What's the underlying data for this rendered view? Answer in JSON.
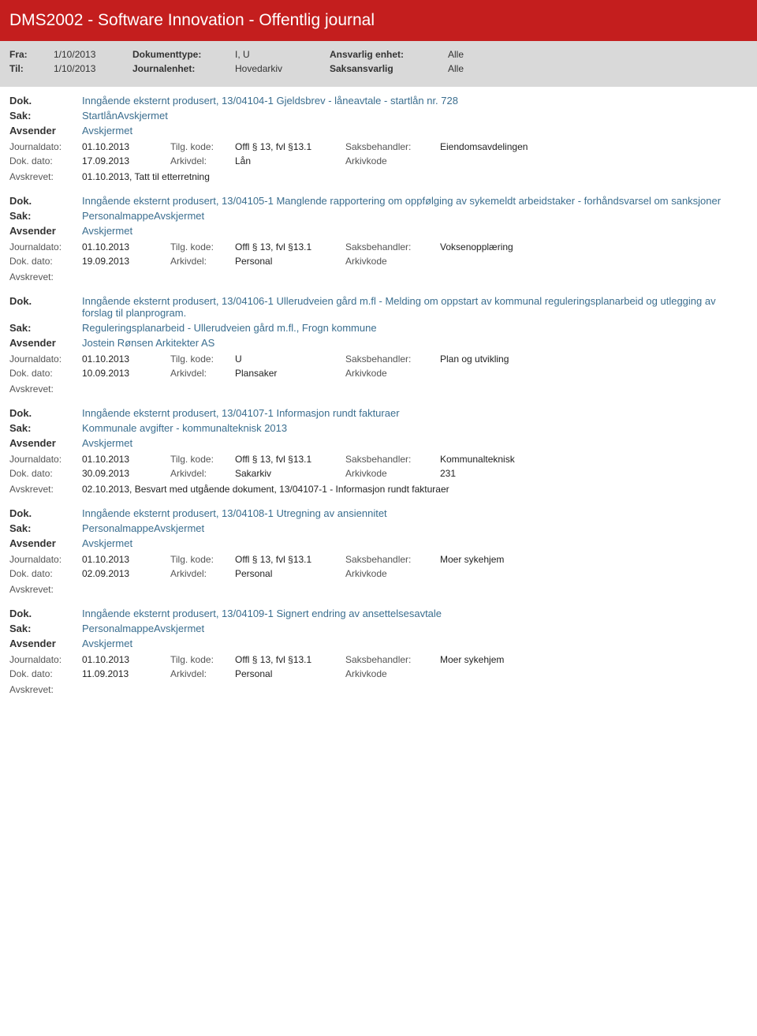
{
  "header": {
    "title": "DMS2002 - Software Innovation - Offentlig journal"
  },
  "filter": {
    "fra_label": "Fra:",
    "fra": "1/10/2013",
    "til_label": "Til:",
    "til": "1/10/2013",
    "doktype_label": "Dokumenttype:",
    "doktype": "I, U",
    "journalenhet_label": "Journalenhet:",
    "journalenhet": "Hovedarkiv",
    "ansvarlig_label": "Ansvarlig enhet:",
    "ansvarlig": "Alle",
    "saksansvarlig_label": "Saksansvarlig",
    "saksansvarlig": "Alle"
  },
  "labels": {
    "dok": "Dok.",
    "sak": "Sak:",
    "avsender": "Avsender",
    "journaldato": "Journaldato:",
    "tilgkode": "Tilg. kode:",
    "saksbehandler": "Saksbehandler:",
    "dokdato": "Dok. dato:",
    "arkivdel": "Arkivdel:",
    "arkivkode": "Arkivkode",
    "avskrevet": "Avskrevet:"
  },
  "entries": [
    {
      "dok": "Inngående eksternt produsert, 13/04104-1 Gjeldsbrev - låneavtale - startlån nr. 728",
      "sak": "StartlånAvskjermet",
      "avsender": "Avskjermet",
      "journaldato": "01.10.2013",
      "tilgkode": "Offl § 13, fvl §13.1",
      "saksbehandler": "Eiendomsavdelingen",
      "dokdato": "17.09.2013",
      "arkivdel": "Lån",
      "arkivkode": "",
      "avskrevet": "01.10.2013, Tatt til etterretning"
    },
    {
      "dok": "Inngående eksternt produsert, 13/04105-1 Manglende rapportering om oppfølging av sykemeldt arbeidstaker - forhåndsvarsel om sanksjoner",
      "sak": "PersonalmappeAvskjermet",
      "avsender": "Avskjermet",
      "journaldato": "01.10.2013",
      "tilgkode": "Offl § 13, fvl §13.1",
      "saksbehandler": "Voksenopplæring",
      "dokdato": "19.09.2013",
      "arkivdel": "Personal",
      "arkivkode": "",
      "avskrevet": ""
    },
    {
      "dok": "Inngående eksternt produsert, 13/04106-1 Ullerudveien gård m.fl - Melding om oppstart av kommunal reguleringsplanarbeid og utlegging av forslag til planprogram.",
      "sak": "Reguleringsplanarbeid - Ullerudveien gård m.fl.,  Frogn kommune",
      "avsender": "Jostein Rønsen Arkitekter AS",
      "journaldato": "01.10.2013",
      "tilgkode": "U",
      "saksbehandler": "Plan og utvikling",
      "dokdato": "10.09.2013",
      "arkivdel": "Plansaker",
      "arkivkode": "",
      "avskrevet": ""
    },
    {
      "dok": "Inngående eksternt produsert, 13/04107-1 Informasjon rundt fakturaer",
      "sak": "Kommunale avgifter  - kommunalteknisk 2013",
      "avsender": "Avskjermet",
      "journaldato": "01.10.2013",
      "tilgkode": "Offl § 13, fvl §13.1",
      "saksbehandler": "Kommunalteknisk",
      "dokdato": "30.09.2013",
      "arkivdel": "Sakarkiv",
      "arkivkode": "231",
      "avskrevet": "02.10.2013, Besvart med utgående dokument, 13/04107-1 - Informasjon rundt fakturaer"
    },
    {
      "dok": "Inngående eksternt produsert, 13/04108-1 Utregning av ansiennitet",
      "sak": "PersonalmappeAvskjermet",
      "avsender": "Avskjermet",
      "journaldato": "01.10.2013",
      "tilgkode": "Offl § 13, fvl §13.1",
      "saksbehandler": "Moer sykehjem",
      "dokdato": "02.09.2013",
      "arkivdel": "Personal",
      "arkivkode": "",
      "avskrevet": ""
    },
    {
      "dok": "Inngående eksternt produsert, 13/04109-1 Signert endring av ansettelsesavtale",
      "sak": "PersonalmappeAvskjermet",
      "avsender": "Avskjermet",
      "journaldato": "01.10.2013",
      "tilgkode": "Offl § 13, fvl §13.1",
      "saksbehandler": "Moer sykehjem",
      "dokdato": "11.09.2013",
      "arkivdel": "Personal",
      "arkivkode": "",
      "avskrevet": ""
    }
  ]
}
